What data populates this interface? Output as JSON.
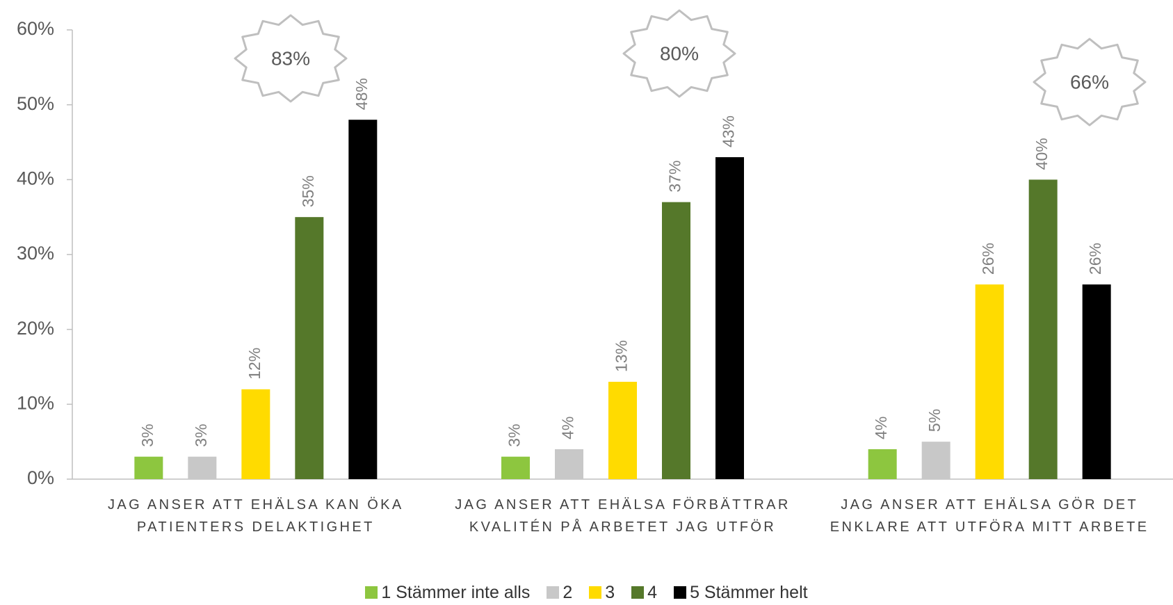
{
  "chart_data": {
    "type": "bar",
    "categories": [
      "JAG ANSER ATT EHÄLSA KAN ÖKA PATIENTERS DELAKTIGHET",
      "JAG ANSER ATT EHÄLSA FÖRBÄTTRAR KVALITÉN PÅ ARBETET JAG UTFÖR",
      "JAG ANSER ATT EHÄLSA GÖR DET ENKLARE ATT UTFÖRA MITT ARBETE"
    ],
    "series": [
      {
        "name": "1 Stämmer inte alls",
        "color": "#8dc63f",
        "values": [
          3,
          3,
          4
        ],
        "value_labels": [
          "3%",
          "3%",
          "4%"
        ]
      },
      {
        "name": "2",
        "color": "#c8c8c8",
        "values": [
          3,
          4,
          5
        ],
        "value_labels": [
          "3%",
          "4%",
          "5%"
        ]
      },
      {
        "name": "3",
        "color": "#ffdb00",
        "values": [
          12,
          13,
          26
        ],
        "value_labels": [
          "12%",
          "13%",
          "26%"
        ]
      },
      {
        "name": "4",
        "color": "#55782a",
        "values": [
          35,
          37,
          40
        ],
        "value_labels": [
          "35%",
          "37%",
          "40%"
        ]
      },
      {
        "name": "5 Stämmer helt",
        "color": "#000000",
        "values": [
          48,
          43,
          26
        ],
        "value_labels": [
          "48%",
          "43%",
          "26%"
        ]
      }
    ],
    "annotations": [
      "83%",
      "80%",
      "66%"
    ],
    "ylim": [
      0,
      60
    ],
    "yticks": [
      {
        "value": 0,
        "label": "0%"
      },
      {
        "value": 10,
        "label": "10%"
      },
      {
        "value": 20,
        "label": "20%"
      },
      {
        "value": 30,
        "label": "30%"
      },
      {
        "value": 40,
        "label": "40%"
      },
      {
        "value": 50,
        "label": "50%"
      },
      {
        "value": 60,
        "label": "60%"
      }
    ],
    "legend": "bottom"
  }
}
